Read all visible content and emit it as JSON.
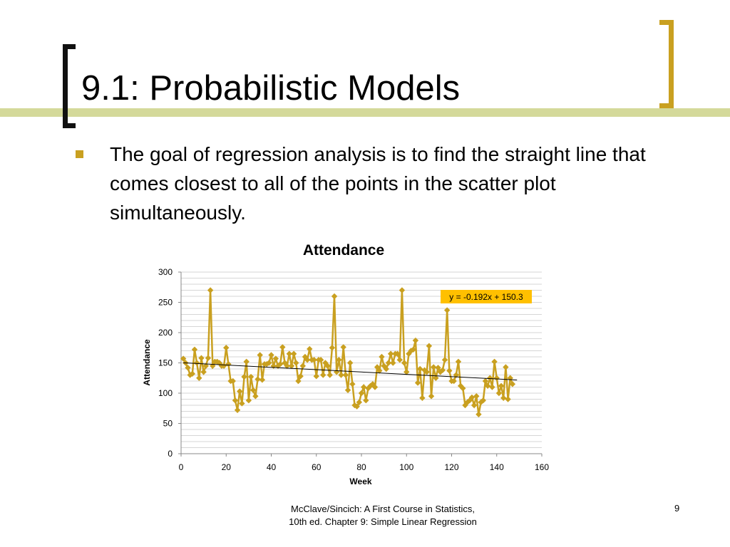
{
  "slide": {
    "title": "9.1: Probabilistic Models",
    "bullet": "The goal of regression analysis is to find the straight line that comes closest to all of the points in the scatter plot simultaneously.",
    "footer_line1": "McClave/Sincich: A First Course in Statistics,",
    "footer_line2": "10th ed. Chapter 9: Simple Linear Regression",
    "page_number": "9"
  },
  "colors": {
    "accent_bar": "#d4d99a",
    "bracket_dark": "#111111",
    "bracket_gold": "#c9a020",
    "bullet": "#c9a020",
    "series": "#c9a020",
    "trendline": "#000000",
    "gridline": "#d6d6d6",
    "equation_box": "#ffc000"
  },
  "chart_data": {
    "type": "line",
    "title": "Attendance",
    "xlabel": "Week",
    "ylabel": "Attendance",
    "xlim": [
      0,
      160
    ],
    "ylim": [
      0,
      300
    ],
    "x_ticks": [
      0,
      20,
      40,
      60,
      80,
      100,
      120,
      140,
      160
    ],
    "y_ticks": [
      0,
      50,
      100,
      150,
      200,
      250,
      300
    ],
    "grid": true,
    "marker": "diamond",
    "trendline": {
      "slope": -0.192,
      "intercept": 150.3,
      "x_range": [
        1,
        149
      ],
      "label": "y = -0.192x + 150.3"
    },
    "series": [
      {
        "values": [
          157,
          150,
          142,
          130,
          132,
          172,
          150,
          125,
          158,
          135,
          145,
          158,
          270,
          145,
          152,
          152,
          150,
          145,
          145,
          175,
          148,
          120,
          120,
          88,
          72,
          103,
          83,
          127,
          152,
          88,
          127,
          105,
          95,
          123,
          163,
          122,
          148,
          148,
          150,
          163,
          145,
          157,
          145,
          148,
          176,
          150,
          145,
          165,
          145,
          165,
          150,
          120,
          128,
          145,
          160,
          155,
          173,
          155,
          155,
          128,
          155,
          155,
          130,
          150,
          145,
          130,
          175,
          260,
          135,
          155,
          130,
          176,
          130,
          105,
          150,
          115,
          80,
          78,
          85,
          100,
          110,
          88,
          108,
          112,
          115,
          110,
          143,
          137,
          160,
          145,
          140,
          150,
          165,
          150,
          165,
          165,
          155,
          270,
          150,
          135,
          165,
          170,
          172,
          187,
          117,
          140,
          92,
          138,
          135,
          178,
          95,
          143,
          125,
          142,
          135,
          138,
          155,
          237,
          137,
          120,
          120,
          130,
          152,
          112,
          108,
          80,
          85,
          88,
          93,
          80,
          95,
          65,
          85,
          88,
          120,
          112,
          125,
          110,
          152,
          125,
          100,
          112,
          92,
          143,
          90,
          125,
          115
        ]
      }
    ]
  }
}
